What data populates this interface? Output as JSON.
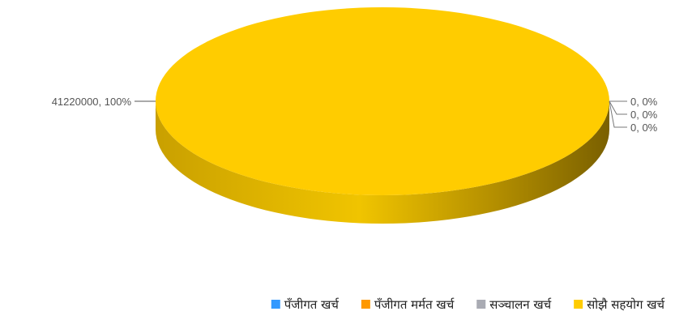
{
  "chart_data": {
    "type": "pie",
    "style": "3d",
    "title": "",
    "legend_position": "bottom",
    "slices": [
      {
        "name": "पँजीगत खर्च",
        "value": 0,
        "percent": 0,
        "color": "#3399ff",
        "label": "0, 0%"
      },
      {
        "name": "पँजीगत मर्मत खर्च",
        "value": 0,
        "percent": 0,
        "color": "#ff9900",
        "label": "0, 0%"
      },
      {
        "name": "सञ्चालन खर्च",
        "value": 0,
        "percent": 0,
        "color": "#a9abb3",
        "label": "0, 0%"
      },
      {
        "name": "सोझै सहयोग खर्च",
        "value": 41220000,
        "percent": 100,
        "color": "#ffcc00",
        "label": "41220000, 100%"
      }
    ]
  }
}
